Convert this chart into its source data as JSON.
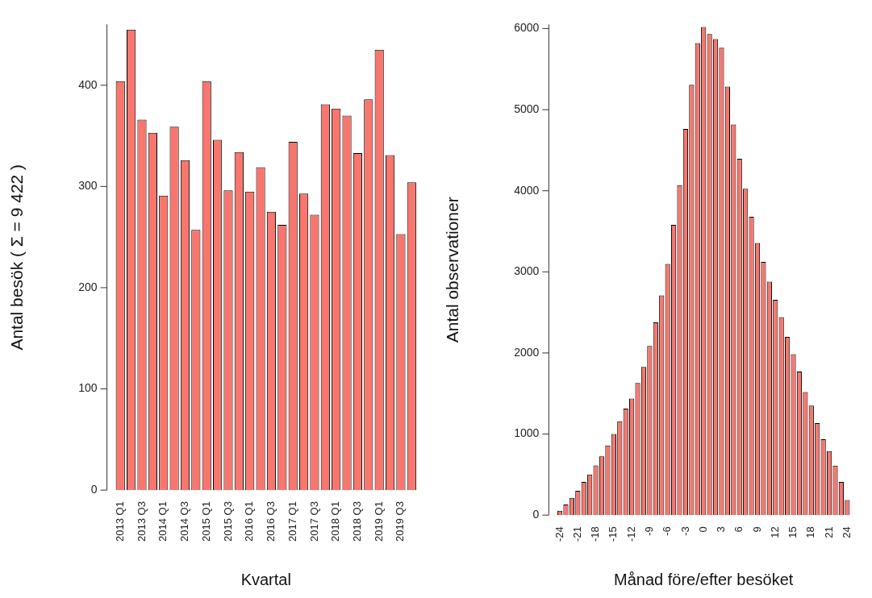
{
  "chart_data": [
    {
      "type": "bar",
      "xlabel": "Kvartal",
      "ylabel": "Antal besök ( Σ = 9 422 )",
      "color": "#f8766d",
      "categories": [
        "2013 Q1",
        null,
        "2013 Q3",
        null,
        "2014 Q1",
        null,
        "2014 Q3",
        null,
        "2015 Q1",
        null,
        "2015 Q3",
        null,
        "2016 Q1",
        null,
        "2016 Q3",
        null,
        "2017 Q1",
        null,
        "2017 Q3",
        null,
        "2018 Q1",
        null,
        "2018 Q3",
        null,
        "2019 Q1",
        null,
        "2019 Q3",
        null
      ],
      "values": [
        404,
        455,
        366,
        353,
        291,
        359,
        326,
        257,
        404,
        346,
        296,
        334,
        295,
        319,
        275,
        262,
        344,
        293,
        272,
        381,
        377,
        370,
        333,
        386,
        435,
        331,
        253,
        304
      ],
      "ylim": [
        0,
        460
      ],
      "yticks": [
        0,
        100,
        200,
        300,
        400
      ],
      "grid": false,
      "legend": false
    },
    {
      "type": "bar",
      "xlabel": "Månad före/efter besöket",
      "ylabel": "Antal observationer",
      "color": "#f8766d",
      "categories": [
        "-24",
        null,
        null,
        "-21",
        null,
        null,
        "-18",
        null,
        null,
        "-15",
        null,
        null,
        "-12",
        null,
        null,
        "-9",
        null,
        null,
        "-6",
        null,
        null,
        "-3",
        null,
        null,
        "0",
        null,
        null,
        "3",
        null,
        null,
        "6",
        null,
        null,
        "9",
        null,
        null,
        "12",
        null,
        null,
        "15",
        null,
        null,
        "18",
        null,
        null,
        "21",
        null,
        null,
        "24"
      ],
      "values": [
        54,
        132,
        213,
        301,
        410,
        501,
        613,
        725,
        860,
        1002,
        1158,
        1314,
        1439,
        1629,
        1829,
        2086,
        2377,
        2709,
        3098,
        3579,
        4069,
        4762,
        5307,
        5821,
        6020,
        5932,
        5871,
        5763,
        5283,
        4816,
        4394,
        4025,
        3680,
        3355,
        3122,
        2878,
        2655,
        2442,
        2198,
        1984,
        1771,
        1517,
        1351,
        1134,
        935,
        789,
        610,
        410,
        186
      ],
      "ylim": [
        0,
        6050
      ],
      "yticks": [
        0,
        1000,
        2000,
        3000,
        4000,
        5000,
        6000
      ],
      "grid": false,
      "legend": false
    }
  ]
}
